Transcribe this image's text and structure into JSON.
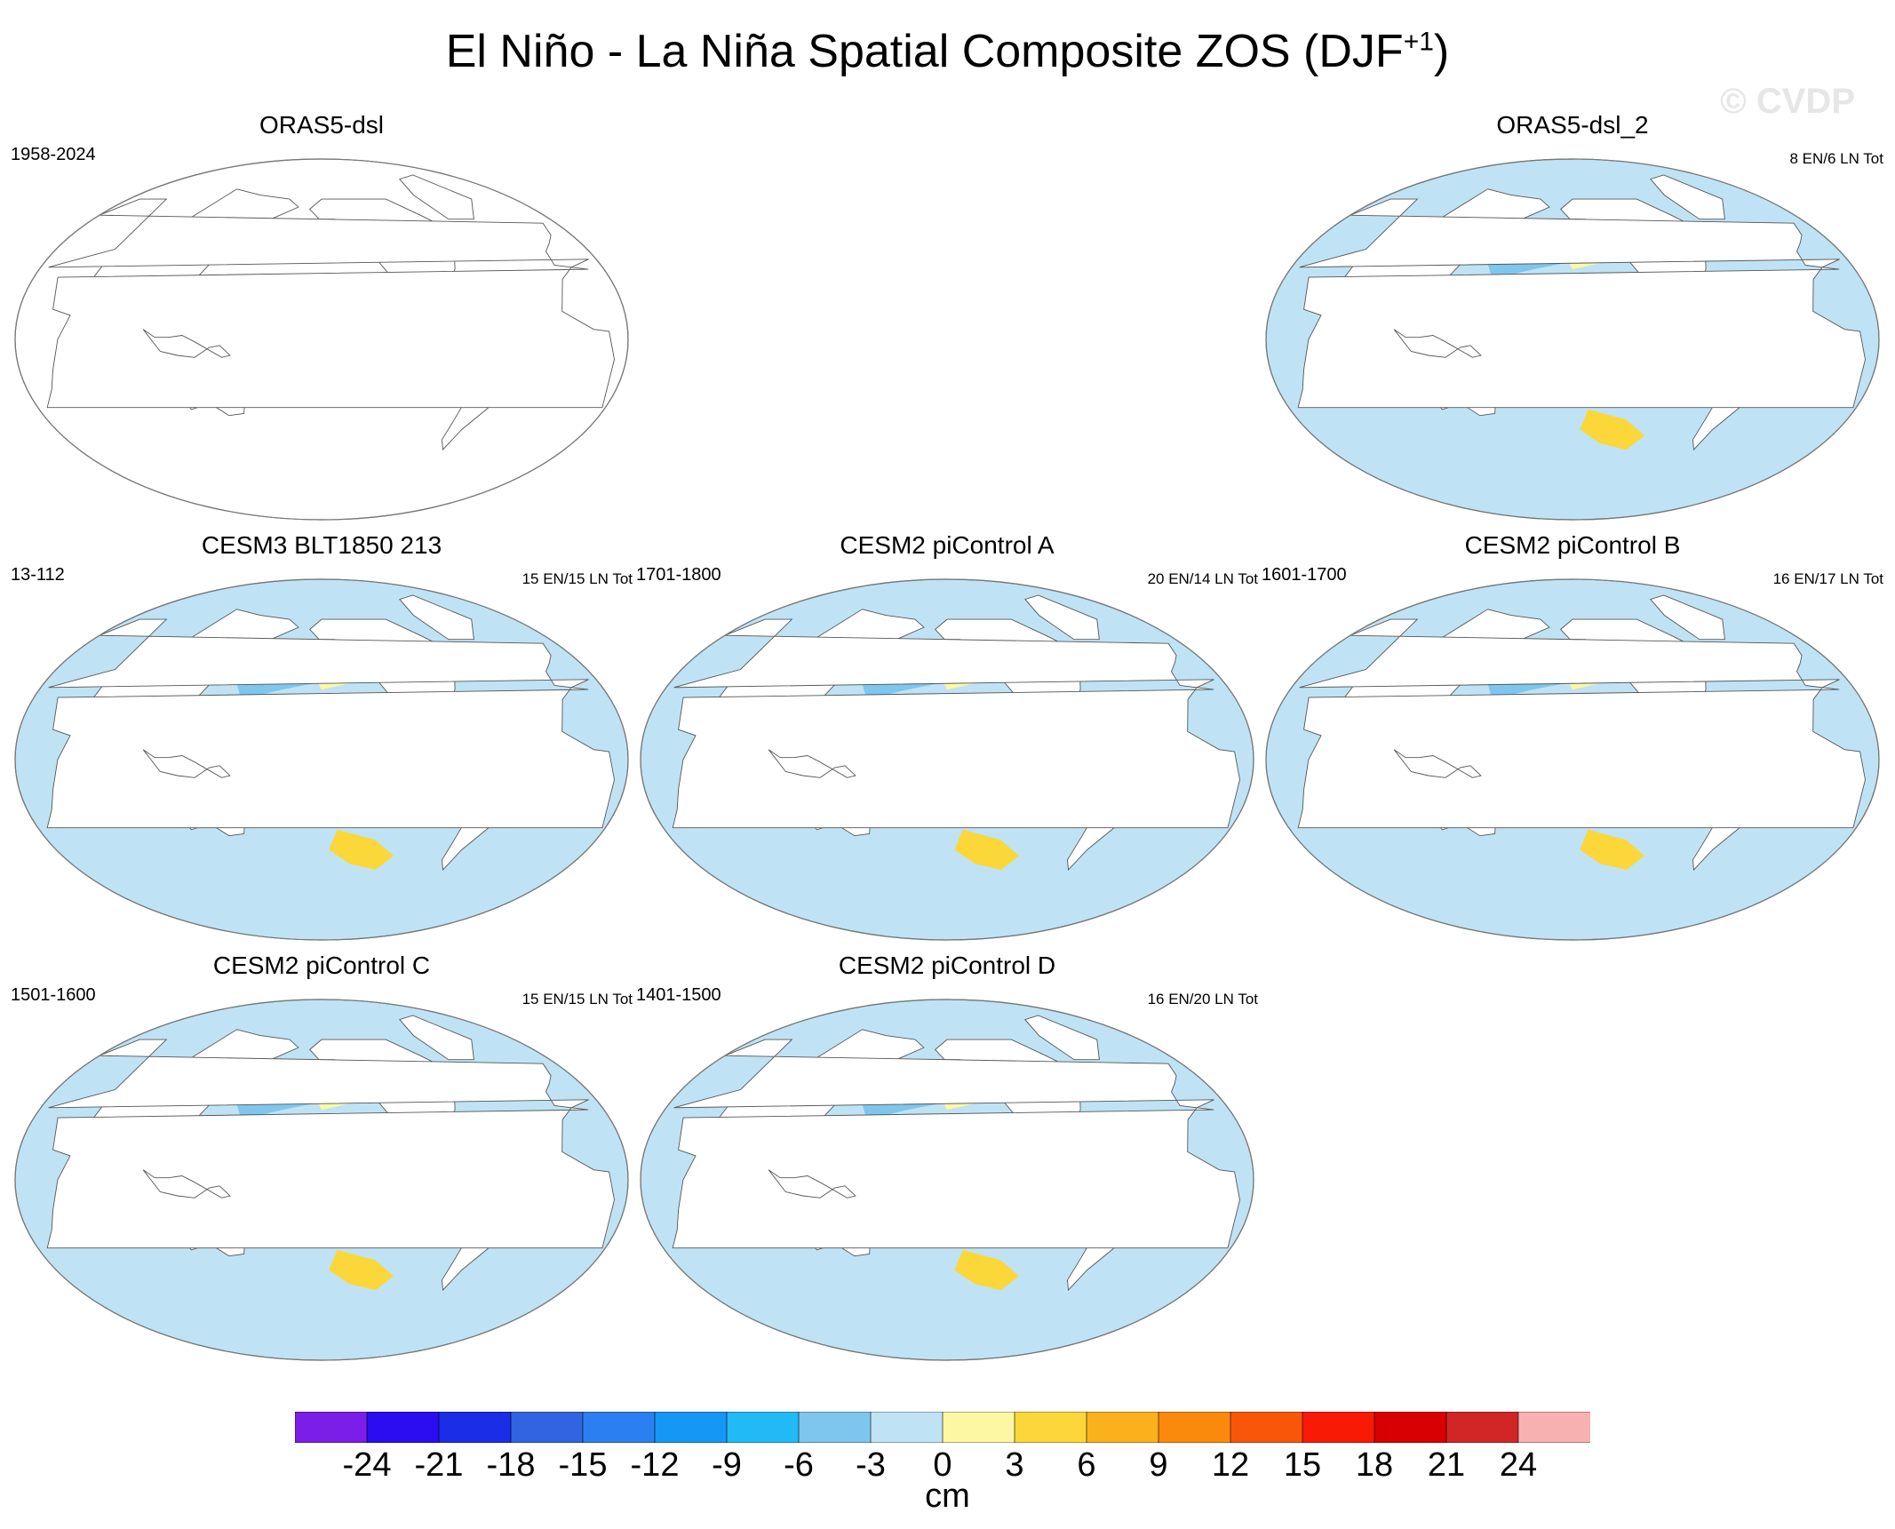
{
  "figure": {
    "title": "El Niño - La Niña Spatial Composite ZOS (DJF",
    "title_superscript": "+1",
    "title_close": ")",
    "watermark": "© CVDP"
  },
  "panels": [
    {
      "id": "oras5-dsl",
      "title": "ORAS5-dsl",
      "period": "1958-2024",
      "counts": "",
      "filled": false
    },
    {
      "id": "oras5-dsl-2",
      "title": "ORAS5-dsl_2",
      "period": "",
      "counts": "8 EN/6 LN Tot",
      "filled": true
    },
    {
      "id": "cesm3-blt1850-213",
      "title": "CESM3 BLT1850 213",
      "period": "13-112",
      "counts": "15 EN/15 LN Tot",
      "filled": true
    },
    {
      "id": "cesm2-picontrol-a",
      "title": "CESM2 piControl A",
      "period": "1701-1800",
      "counts": "20 EN/14 LN Tot",
      "filled": true
    },
    {
      "id": "cesm2-picontrol-b",
      "title": "CESM2 piControl B",
      "period": "1601-1700",
      "counts": "16 EN/17 LN Tot",
      "filled": true
    },
    {
      "id": "cesm2-picontrol-c",
      "title": "CESM2 piControl C",
      "period": "1501-1600",
      "counts": "15 EN/15 LN Tot",
      "filled": true
    },
    {
      "id": "cesm2-picontrol-d",
      "title": "CESM2 piControl D",
      "period": "1401-1500",
      "counts": "16 EN/20 LN Tot",
      "filled": true
    }
  ],
  "colorbar": {
    "units": "cm",
    "tick_labels": [
      "-24",
      "-21",
      "-18",
      "-15",
      "-12",
      "-9",
      "-6",
      "-3",
      "0",
      "3",
      "6",
      "9",
      "12",
      "15",
      "18",
      "21",
      "24"
    ],
    "colors": [
      "#7a1ee8",
      "#2a0df0",
      "#1b2de6",
      "#3263e0",
      "#2b7ff0",
      "#1597f5",
      "#22b9f7",
      "#7ec6ee",
      "#bfe3f5",
      "#fdf7a4",
      "#fbd73a",
      "#fbb11c",
      "#fb8a0c",
      "#f9560a",
      "#f81a05",
      "#d90003",
      "#d22626",
      "#f8b1b1"
    ]
  }
}
